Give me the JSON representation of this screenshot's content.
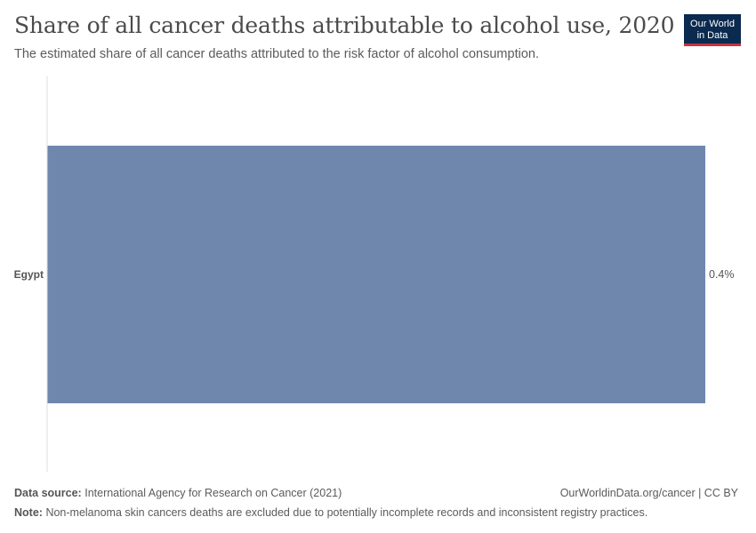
{
  "header": {
    "title": "Share of all cancer deaths attributable to alcohol use, 2020",
    "subtitle": "The estimated share of all cancer deaths attributed to the risk factor of alcohol consumption."
  },
  "logo": {
    "line1": "Our World",
    "line2": "in Data"
  },
  "footer": {
    "source_label": "Data source:",
    "source_text": "International Agency for Research on Cancer (2021)",
    "credit": "OurWorldinData.org/cancer | CC BY",
    "note_label": "Note:",
    "note_text": "Non-melanoma skin cancers deaths are excluded due to potentially incomplete records and inconsistent registry practices."
  },
  "chart_data": {
    "type": "bar",
    "orientation": "horizontal",
    "categories": [
      "Egypt"
    ],
    "values": [
      0.4
    ],
    "value_labels": [
      "0.4%"
    ],
    "xlim": [
      0,
      0.4
    ],
    "bar_color": "#6f87ad",
    "axis_color": "#dddddd"
  }
}
